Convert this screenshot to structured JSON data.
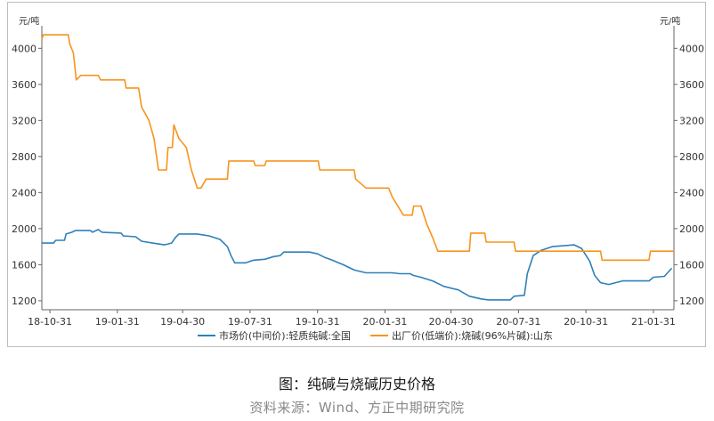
{
  "caption": "图：纯碱与烧碱历史价格",
  "source": "资料来源：Wind、方正中期研究院",
  "colors": {
    "blue": "#2f80b9",
    "orange": "#f7941d",
    "axis": "#666666"
  },
  "chart_data": {
    "type": "line",
    "unit_left": "元/吨",
    "unit_right": "元/吨",
    "ylim": [
      1100,
      4250
    ],
    "y_ticks": [
      1200,
      1600,
      2000,
      2400,
      2800,
      3200,
      3600,
      4000
    ],
    "x_range": [
      "2018-10-20",
      "2021-02-28"
    ],
    "x_ticks": [
      {
        "date": "2018-10-31",
        "label": "18-10-31"
      },
      {
        "date": "2019-01-31",
        "label": "19-01-31"
      },
      {
        "date": "2019-04-30",
        "label": "19-04-30"
      },
      {
        "date": "2019-07-31",
        "label": "19-07-31"
      },
      {
        "date": "2019-10-31",
        "label": "19-10-31"
      },
      {
        "date": "2020-01-31",
        "label": "20-01-31"
      },
      {
        "date": "2020-04-30",
        "label": "20-04-30"
      },
      {
        "date": "2020-07-31",
        "label": "20-07-31"
      },
      {
        "date": "2020-10-31",
        "label": "20-10-31"
      },
      {
        "date": "2021-01-31",
        "label": "21-01-31"
      }
    ],
    "series": [
      {
        "name": "市场价(中间价):轻质纯碱:全国",
        "color": "#2f80b9",
        "axis": "left",
        "points": [
          [
            "2018-10-20",
            1840
          ],
          [
            "2018-11-05",
            1840
          ],
          [
            "2018-11-08",
            1870
          ],
          [
            "2018-11-20",
            1870
          ],
          [
            "2018-11-22",
            1940
          ],
          [
            "2018-11-30",
            1960
          ],
          [
            "2018-12-05",
            1980
          ],
          [
            "2018-12-25",
            1980
          ],
          [
            "2018-12-28",
            1960
          ],
          [
            "2019-01-05",
            1990
          ],
          [
            "2019-01-10",
            1960
          ],
          [
            "2019-02-05",
            1950
          ],
          [
            "2019-02-08",
            1920
          ],
          [
            "2019-02-25",
            1910
          ],
          [
            "2019-03-05",
            1860
          ],
          [
            "2019-03-20",
            1840
          ],
          [
            "2019-04-05",
            1820
          ],
          [
            "2019-04-15",
            1840
          ],
          [
            "2019-04-20",
            1900
          ],
          [
            "2019-04-25",
            1940
          ],
          [
            "2019-05-01",
            1940
          ],
          [
            "2019-05-20",
            1940
          ],
          [
            "2019-06-05",
            1920
          ],
          [
            "2019-06-20",
            1880
          ],
          [
            "2019-06-30",
            1800
          ],
          [
            "2019-07-05",
            1700
          ],
          [
            "2019-07-10",
            1620
          ],
          [
            "2019-07-25",
            1620
          ],
          [
            "2019-08-05",
            1650
          ],
          [
            "2019-08-20",
            1660
          ],
          [
            "2019-09-01",
            1690
          ],
          [
            "2019-09-10",
            1700
          ],
          [
            "2019-09-15",
            1740
          ],
          [
            "2019-10-20",
            1740
          ],
          [
            "2019-10-31",
            1720
          ],
          [
            "2019-11-10",
            1680
          ],
          [
            "2019-11-20",
            1650
          ],
          [
            "2019-12-05",
            1600
          ],
          [
            "2019-12-20",
            1540
          ],
          [
            "2020-01-05",
            1510
          ],
          [
            "2020-02-10",
            1510
          ],
          [
            "2020-02-20",
            1500
          ],
          [
            "2020-03-05",
            1500
          ],
          [
            "2020-03-10",
            1480
          ],
          [
            "2020-03-20",
            1460
          ],
          [
            "2020-04-05",
            1420
          ],
          [
            "2020-04-20",
            1360
          ],
          [
            "2020-05-10",
            1320
          ],
          [
            "2020-05-25",
            1250
          ],
          [
            "2020-06-10",
            1220
          ],
          [
            "2020-06-20",
            1210
          ],
          [
            "2020-07-20",
            1210
          ],
          [
            "2020-07-25",
            1250
          ],
          [
            "2020-08-08",
            1260
          ],
          [
            "2020-08-12",
            1500
          ],
          [
            "2020-08-20",
            1700
          ],
          [
            "2020-08-31",
            1760
          ],
          [
            "2020-09-15",
            1800
          ],
          [
            "2020-10-15",
            1820
          ],
          [
            "2020-10-25",
            1780
          ],
          [
            "2020-11-05",
            1640
          ],
          [
            "2020-11-12",
            1480
          ],
          [
            "2020-11-20",
            1400
          ],
          [
            "2020-12-01",
            1380
          ],
          [
            "2020-12-20",
            1420
          ],
          [
            "2021-01-25",
            1420
          ],
          [
            "2021-01-31",
            1460
          ],
          [
            "2021-02-15",
            1470
          ],
          [
            "2021-02-25",
            1560
          ]
        ]
      },
      {
        "name": "出厂价(低端价):烧碱(96%片碱):山东",
        "color": "#f7941d",
        "axis": "right",
        "points": [
          [
            "2018-10-20",
            4100
          ],
          [
            "2018-10-22",
            4150
          ],
          [
            "2018-11-25",
            4150
          ],
          [
            "2018-11-27",
            4050
          ],
          [
            "2018-12-02",
            3950
          ],
          [
            "2018-12-06",
            3650
          ],
          [
            "2018-12-12",
            3700
          ],
          [
            "2019-01-05",
            3700
          ],
          [
            "2019-01-08",
            3650
          ],
          [
            "2019-02-10",
            3650
          ],
          [
            "2019-02-12",
            3560
          ],
          [
            "2019-03-01",
            3560
          ],
          [
            "2019-03-05",
            3350
          ],
          [
            "2019-03-15",
            3200
          ],
          [
            "2019-03-22",
            3000
          ],
          [
            "2019-03-28",
            2650
          ],
          [
            "2019-04-08",
            2650
          ],
          [
            "2019-04-10",
            2900
          ],
          [
            "2019-04-16",
            2900
          ],
          [
            "2019-04-18",
            3150
          ],
          [
            "2019-04-25",
            3000
          ],
          [
            "2019-05-05",
            2900
          ],
          [
            "2019-05-12",
            2650
          ],
          [
            "2019-05-20",
            2450
          ],
          [
            "2019-05-25",
            2450
          ],
          [
            "2019-06-01",
            2550
          ],
          [
            "2019-06-30",
            2550
          ],
          [
            "2019-07-02",
            2750
          ],
          [
            "2019-08-05",
            2750
          ],
          [
            "2019-08-07",
            2700
          ],
          [
            "2019-08-20",
            2700
          ],
          [
            "2019-08-22",
            2750
          ],
          [
            "2019-11-01",
            2750
          ],
          [
            "2019-11-03",
            2650
          ],
          [
            "2019-12-20",
            2650
          ],
          [
            "2019-12-22",
            2550
          ],
          [
            "2020-01-05",
            2450
          ],
          [
            "2020-02-05",
            2450
          ],
          [
            "2020-02-10",
            2350
          ],
          [
            "2020-02-25",
            2150
          ],
          [
            "2020-03-08",
            2150
          ],
          [
            "2020-03-10",
            2250
          ],
          [
            "2020-03-20",
            2250
          ],
          [
            "2020-03-28",
            2050
          ],
          [
            "2020-04-05",
            1900
          ],
          [
            "2020-04-12",
            1750
          ],
          [
            "2020-05-25",
            1750
          ],
          [
            "2020-05-27",
            1950
          ],
          [
            "2020-06-15",
            1950
          ],
          [
            "2020-06-17",
            1850
          ],
          [
            "2020-07-25",
            1850
          ],
          [
            "2020-07-27",
            1750
          ],
          [
            "2020-11-20",
            1750
          ],
          [
            "2020-11-22",
            1650
          ],
          [
            "2021-01-25",
            1650
          ],
          [
            "2021-01-27",
            1750
          ],
          [
            "2021-02-28",
            1750
          ]
        ]
      }
    ]
  }
}
